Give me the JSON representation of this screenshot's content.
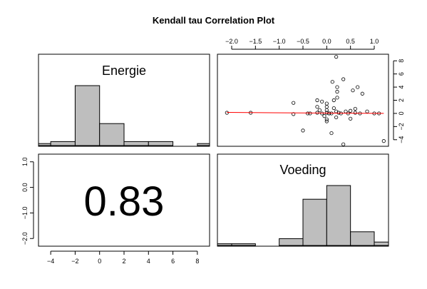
{
  "chart_data": {
    "type": "pairs-matrix",
    "title": "Kendall tau Correlation Plot",
    "variables": [
      "Energie",
      "Voeding"
    ],
    "correlation_text": "0.83",
    "energie_histogram": {
      "label": "Energie",
      "bin_edges": [
        -6,
        -4,
        -2,
        0,
        2,
        4,
        6,
        8,
        10
      ],
      "counts": [
        1,
        2,
        30,
        11,
        2,
        2,
        0,
        1
      ],
      "xlim": [
        -5,
        9
      ],
      "xticks": [
        -4,
        -2,
        0,
        2,
        4,
        6,
        8
      ]
    },
    "voeding_histogram": {
      "label": "Voeding",
      "bin_edges": [
        -2.5,
        -2,
        -1.5,
        -1,
        -0.5,
        0,
        0.5,
        1,
        1.5
      ],
      "counts": [
        1,
        1,
        0,
        4,
        27,
        35,
        8,
        2
      ],
      "xlim": [
        -2.3,
        1.3
      ]
    },
    "scatter": {
      "x_label": "Voeding",
      "y_label": "Energie",
      "xlim": [
        -2.3,
        1.3
      ],
      "ylim": [
        -5,
        9
      ],
      "xticks": [
        -2,
        -1.5,
        -1,
        -0.5,
        0,
        0.5,
        1
      ],
      "xtick_labels": [
        "−2.0",
        "−1.5",
        "−1.0",
        "−0.5",
        "0.0",
        "0.5",
        "1.0"
      ],
      "yticks": [
        -4,
        -2,
        0,
        2,
        4,
        6,
        8
      ],
      "ytick_labels": [
        "−4",
        "−2",
        "0",
        "2",
        "4",
        "6",
        "8"
      ],
      "points": [
        [
          -2.1,
          0.1
        ],
        [
          -1.6,
          0.1
        ],
        [
          -0.7,
          -0.1
        ],
        [
          -0.7,
          1.6
        ],
        [
          -0.5,
          -2.6
        ],
        [
          -0.4,
          0.0
        ],
        [
          -0.35,
          0.0
        ],
        [
          -0.2,
          0.1
        ],
        [
          -0.2,
          1.0
        ],
        [
          -0.2,
          2.0
        ],
        [
          -0.15,
          0.5
        ],
        [
          -0.1,
          0.0
        ],
        [
          -0.1,
          1.8
        ],
        [
          -0.05,
          -0.4
        ],
        [
          0.0,
          0.1
        ],
        [
          0.0,
          0.5
        ],
        [
          0.0,
          1.0
        ],
        [
          0.0,
          1.5
        ],
        [
          0.0,
          -0.9
        ],
        [
          0.0,
          -1.2
        ],
        [
          0.05,
          0.0
        ],
        [
          0.05,
          0.0
        ],
        [
          0.1,
          0.0
        ],
        [
          0.1,
          -3.0
        ],
        [
          0.12,
          4.8
        ],
        [
          0.15,
          2.0
        ],
        [
          0.15,
          0.8
        ],
        [
          0.2,
          0.3
        ],
        [
          0.2,
          -0.6
        ],
        [
          0.2,
          8.6
        ],
        [
          0.22,
          4.0
        ],
        [
          0.22,
          3.3
        ],
        [
          0.22,
          2.4
        ],
        [
          0.25,
          0.1
        ],
        [
          0.3,
          0.0
        ],
        [
          0.35,
          5.2
        ],
        [
          0.35,
          -4.7
        ],
        [
          0.4,
          0.3
        ],
        [
          0.45,
          0.0
        ],
        [
          0.5,
          0.4
        ],
        [
          0.5,
          -0.8
        ],
        [
          0.55,
          3.5
        ],
        [
          0.6,
          0.7
        ],
        [
          0.6,
          0.1
        ],
        [
          0.65,
          4.0
        ],
        [
          0.7,
          0.0
        ],
        [
          0.75,
          3.0
        ],
        [
          0.85,
          0.3
        ],
        [
          1.0,
          0.0
        ],
        [
          1.1,
          0.0
        ],
        [
          1.2,
          -4.2
        ]
      ],
      "fit_line": {
        "x": [
          -2.1,
          1.2
        ],
        "y": [
          0.15,
          0.0
        ],
        "color": "#ff0000"
      }
    },
    "left_axis_ticks": {
      "values": [
        1.0,
        0.0,
        -1.0,
        -2.0
      ],
      "labels": [
        "1.0",
        "0.0",
        "−1.0",
        "−2.0"
      ],
      "range": [
        -2.3,
        1.3
      ]
    }
  },
  "colors": {
    "bar_fill": "#bebebe",
    "line": "#000000",
    "fit": "#ff0000"
  }
}
